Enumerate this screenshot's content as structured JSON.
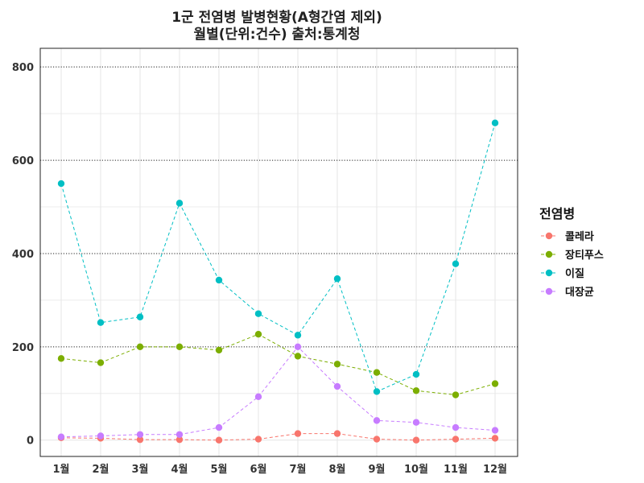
{
  "chart_data": {
    "type": "line",
    "title": "1군 전염병 발병현황(A형간염 제외)",
    "subtitle": "월별(단위:건수) 출처:통계청",
    "xlabel": "",
    "ylabel": "",
    "categories": [
      "1월",
      "2월",
      "3월",
      "4월",
      "5월",
      "6월",
      "7월",
      "8월",
      "9월",
      "10월",
      "11월",
      "12월"
    ],
    "ylim": [
      -35,
      840
    ],
    "yticks": [
      0,
      200,
      400,
      600,
      800
    ],
    "grid": true,
    "legend_title": "전염병",
    "legend_position": "right",
    "series": [
      {
        "name": "콜레라",
        "color": "#F8766D",
        "values": [
          5,
          4,
          1,
          1,
          0,
          2,
          14,
          14,
          2,
          0,
          2,
          4
        ]
      },
      {
        "name": "장티푸스",
        "color": "#7CAE00",
        "values": [
          175,
          166,
          200,
          200,
          193,
          227,
          180,
          163,
          145,
          106,
          97,
          121
        ]
      },
      {
        "name": "이질",
        "color": "#00BFC4",
        "values": [
          550,
          252,
          264,
          508,
          343,
          271,
          225,
          346,
          104,
          141,
          378,
          680
        ]
      },
      {
        "name": "대장균",
        "color": "#C77CFF",
        "values": [
          7,
          9,
          12,
          12,
          27,
          93,
          200,
          115,
          42,
          38,
          27,
          21
        ]
      }
    ]
  }
}
